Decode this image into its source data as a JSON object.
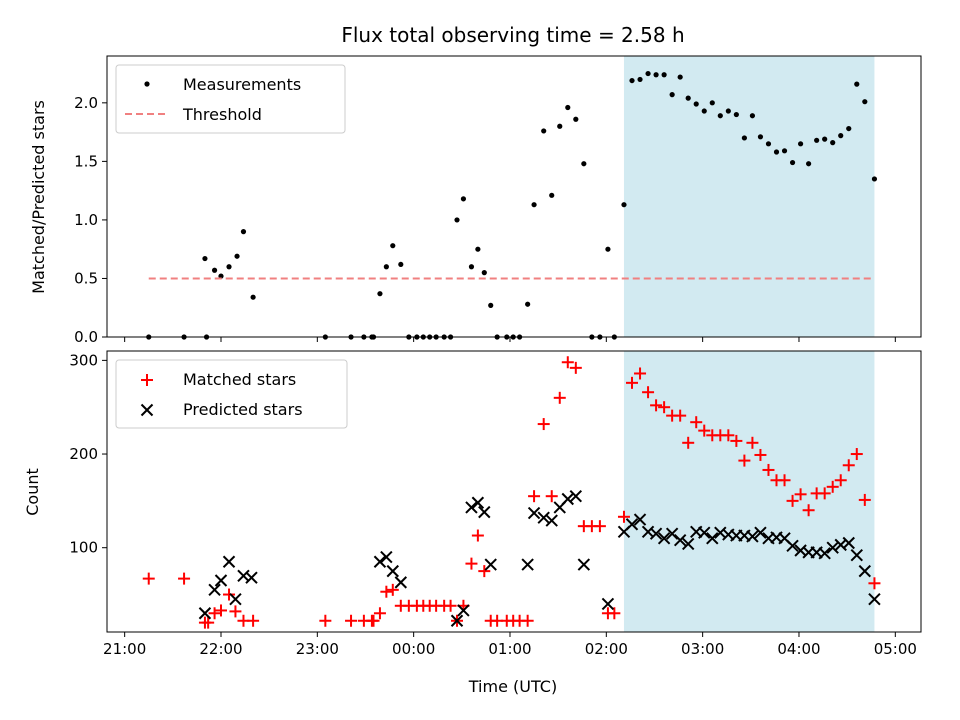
{
  "chart_data": {
    "title": "Flux total observing time = 2.58 h",
    "xlabel": "Time (UTC)",
    "x_ticks": [
      "21:00",
      "22:00",
      "23:00",
      "00:00",
      "01:00",
      "02:00",
      "03:00",
      "04:00",
      "05:00"
    ],
    "observing_window": {
      "start": "02:11",
      "end": "04:47",
      "color": "#add8e6"
    },
    "panels": [
      {
        "type": "scatter",
        "ylabel": "Matched/Predicted stars",
        "ylim": [
          0,
          2.4
        ],
        "y_ticks": [
          0.0,
          0.5,
          1.0,
          1.5,
          2.0
        ],
        "legend_position": "upper left",
        "series": [
          {
            "name": "Measurements",
            "marker": "dot",
            "color": "#000000",
            "points": [
              [
                "21:15",
                0.0
              ],
              [
                "21:37",
                0.0
              ],
              [
                "21:50",
                0.67
              ],
              [
                "21:51",
                0.0
              ],
              [
                "21:56",
                0.57
              ],
              [
                "22:00",
                0.52
              ],
              [
                "22:05",
                0.6
              ],
              [
                "22:10",
                0.69
              ],
              [
                "22:14",
                0.9
              ],
              [
                "22:20",
                0.34
              ],
              [
                "23:05",
                0.0
              ],
              [
                "23:21",
                0.0
              ],
              [
                "23:29",
                0.0
              ],
              [
                "23:34",
                0.0
              ],
              [
                "23:35",
                0.0
              ],
              [
                "23:39",
                0.37
              ],
              [
                "23:43",
                0.6
              ],
              [
                "23:47",
                0.78
              ],
              [
                "23:52",
                0.62
              ],
              [
                "23:57",
                0.0
              ],
              [
                "00:02",
                0.0
              ],
              [
                "00:06",
                0.0
              ],
              [
                "00:10",
                0.0
              ],
              [
                "00:14",
                0.0
              ],
              [
                "00:19",
                0.0
              ],
              [
                "00:23",
                0.0
              ],
              [
                "00:27",
                1.0
              ],
              [
                "00:31",
                1.18
              ],
              [
                "00:36",
                0.6
              ],
              [
                "00:40",
                0.75
              ],
              [
                "00:44",
                0.55
              ],
              [
                "00:48",
                0.27
              ],
              [
                "00:52",
                0.0
              ],
              [
                "00:58",
                0.0
              ],
              [
                "01:02",
                0.0
              ],
              [
                "01:06",
                0.0
              ],
              [
                "01:11",
                0.28
              ],
              [
                "01:15",
                1.13
              ],
              [
                "01:21",
                1.76
              ],
              [
                "01:26",
                1.21
              ],
              [
                "01:31",
                1.8
              ],
              [
                "01:36",
                1.96
              ],
              [
                "01:41",
                1.86
              ],
              [
                "01:46",
                1.48
              ],
              [
                "01:51",
                0.0
              ],
              [
                "01:56",
                0.0
              ],
              [
                "02:01",
                0.75
              ],
              [
                "02:05",
                0.0
              ],
              [
                "02:11",
                1.13
              ],
              [
                "02:16",
                2.19
              ],
              [
                "02:21",
                2.2
              ],
              [
                "02:26",
                2.25
              ],
              [
                "02:31",
                2.24
              ],
              [
                "02:36",
                2.24
              ],
              [
                "02:41",
                2.07
              ],
              [
                "02:46",
                2.22
              ],
              [
                "02:51",
                2.04
              ],
              [
                "02:56",
                1.99
              ],
              [
                "03:01",
                1.93
              ],
              [
                "03:06",
                2.0
              ],
              [
                "03:11",
                1.89
              ],
              [
                "03:16",
                1.93
              ],
              [
                "03:21",
                1.9
              ],
              [
                "03:26",
                1.7
              ],
              [
                "03:31",
                1.89
              ],
              [
                "03:36",
                1.71
              ],
              [
                "03:41",
                1.65
              ],
              [
                "03:46",
                1.58
              ],
              [
                "03:51",
                1.59
              ],
              [
                "03:56",
                1.49
              ],
              [
                "04:01",
                1.65
              ],
              [
                "04:06",
                1.48
              ],
              [
                "04:11",
                1.68
              ],
              [
                "04:16",
                1.69
              ],
              [
                "04:21",
                1.66
              ],
              [
                "04:26",
                1.72
              ],
              [
                "04:31",
                1.78
              ],
              [
                "04:36",
                2.16
              ],
              [
                "04:41",
                2.01
              ],
              [
                "04:47",
                1.35
              ]
            ]
          },
          {
            "name": "Threshold",
            "marker": "dashed-line",
            "color": "#f08080",
            "y": 0.5,
            "x_range": [
              "21:15",
              "04:47"
            ]
          }
        ]
      },
      {
        "type": "scatter",
        "ylabel": "Count",
        "ylim": [
          10,
          310
        ],
        "y_ticks": [
          100,
          200,
          300
        ],
        "legend_position": "upper left",
        "series": [
          {
            "name": "Matched stars",
            "marker": "plus",
            "color": "#ff0000",
            "points": [
              [
                "21:15",
                67
              ],
              [
                "21:37",
                67
              ],
              [
                "21:50",
                20
              ],
              [
                "21:52",
                20
              ],
              [
                "21:56",
                30
              ],
              [
                "22:00",
                33
              ],
              [
                "22:05",
                50
              ],
              [
                "22:09",
                32
              ],
              [
                "22:14",
                22
              ],
              [
                "22:20",
                22
              ],
              [
                "23:05",
                22
              ],
              [
                "23:21",
                22
              ],
              [
                "23:29",
                22
              ],
              [
                "23:34",
                22
              ],
              [
                "23:35",
                22
              ],
              [
                "23:39",
                30
              ],
              [
                "23:43",
                53
              ],
              [
                "23:47",
                55
              ],
              [
                "23:52",
                38
              ],
              [
                "23:57",
                38
              ],
              [
                "00:02",
                38
              ],
              [
                "00:06",
                38
              ],
              [
                "00:10",
                38
              ],
              [
                "00:14",
                38
              ],
              [
                "00:19",
                38
              ],
              [
                "00:23",
                38
              ],
              [
                "00:27",
                22
              ],
              [
                "00:31",
                38
              ],
              [
                "00:36",
                83
              ],
              [
                "00:40",
                113
              ],
              [
                "00:44",
                75
              ],
              [
                "00:48",
                22
              ],
              [
                "00:52",
                22
              ],
              [
                "00:58",
                22
              ],
              [
                "01:02",
                22
              ],
              [
                "01:06",
                22
              ],
              [
                "01:11",
                22
              ],
              [
                "01:15",
                155
              ],
              [
                "01:21",
                232
              ],
              [
                "01:26",
                155
              ],
              [
                "01:31",
                260
              ],
              [
                "01:36",
                298
              ],
              [
                "01:41",
                292
              ],
              [
                "01:46",
                123
              ],
              [
                "01:51",
                123
              ],
              [
                "01:56",
                123
              ],
              [
                "02:01",
                30
              ],
              [
                "02:05",
                30
              ],
              [
                "02:11",
                133
              ],
              [
                "02:16",
                276
              ],
              [
                "02:21",
                286
              ],
              [
                "02:26",
                266
              ],
              [
                "02:31",
                252
              ],
              [
                "02:36",
                250
              ],
              [
                "02:41",
                241
              ],
              [
                "02:46",
                241
              ],
              [
                "02:51",
                212
              ],
              [
                "02:56",
                234
              ],
              [
                "03:01",
                225
              ],
              [
                "03:06",
                220
              ],
              [
                "03:11",
                220
              ],
              [
                "03:16",
                220
              ],
              [
                "03:21",
                214
              ],
              [
                "03:26",
                193
              ],
              [
                "03:31",
                212
              ],
              [
                "03:36",
                199
              ],
              [
                "03:41",
                183
              ],
              [
                "03:46",
                172
              ],
              [
                "03:51",
                172
              ],
              [
                "03:56",
                150
              ],
              [
                "04:01",
                157
              ],
              [
                "04:06",
                140
              ],
              [
                "04:11",
                158
              ],
              [
                "04:16",
                158
              ],
              [
                "04:21",
                165
              ],
              [
                "04:26",
                172
              ],
              [
                "04:31",
                188
              ],
              [
                "04:36",
                200
              ],
              [
                "04:41",
                151
              ],
              [
                "04:47",
                62
              ]
            ]
          },
          {
            "name": "Predicted stars",
            "marker": "x",
            "color": "#000000",
            "points": [
              [
                "21:50",
                30
              ],
              [
                "21:56",
                55
              ],
              [
                "22:00",
                65
              ],
              [
                "22:05",
                85
              ],
              [
                "22:09",
                45
              ],
              [
                "22:14",
                70
              ],
              [
                "22:19",
                68
              ],
              [
                "23:39",
                85
              ],
              [
                "23:43",
                90
              ],
              [
                "23:47",
                75
              ],
              [
                "23:52",
                63
              ],
              [
                "00:27",
                22
              ],
              [
                "00:31",
                33
              ],
              [
                "00:36",
                143
              ],
              [
                "00:40",
                148
              ],
              [
                "00:44",
                138
              ],
              [
                "00:48",
                82
              ],
              [
                "01:11",
                82
              ],
              [
                "01:15",
                137
              ],
              [
                "01:21",
                132
              ],
              [
                "01:26",
                129
              ],
              [
                "01:31",
                143
              ],
              [
                "01:36",
                152
              ],
              [
                "01:41",
                155
              ],
              [
                "01:46",
                82
              ],
              [
                "02:01",
                40
              ],
              [
                "02:11",
                117
              ],
              [
                "02:16",
                125
              ],
              [
                "02:21",
                130
              ],
              [
                "02:26",
                117
              ],
              [
                "02:31",
                115
              ],
              [
                "02:36",
                110
              ],
              [
                "02:41",
                115
              ],
              [
                "02:46",
                108
              ],
              [
                "02:51",
                104
              ],
              [
                "02:56",
                117
              ],
              [
                "03:01",
                116
              ],
              [
                "03:06",
                110
              ],
              [
                "03:11",
                116
              ],
              [
                "03:16",
                114
              ],
              [
                "03:21",
                113
              ],
              [
                "03:26",
                113
              ],
              [
                "03:31",
                112
              ],
              [
                "03:36",
                116
              ],
              [
                "03:41",
                110
              ],
              [
                "03:46",
                111
              ],
              [
                "03:51",
                110
              ],
              [
                "03:56",
                102
              ],
              [
                "04:01",
                97
              ],
              [
                "04:06",
                95
              ],
              [
                "04:11",
                95
              ],
              [
                "04:16",
                94
              ],
              [
                "04:21",
                100
              ],
              [
                "04:26",
                103
              ],
              [
                "04:31",
                105
              ],
              [
                "04:36",
                92
              ],
              [
                "04:41",
                75
              ],
              [
                "04:47",
                45
              ]
            ]
          }
        ]
      }
    ]
  }
}
